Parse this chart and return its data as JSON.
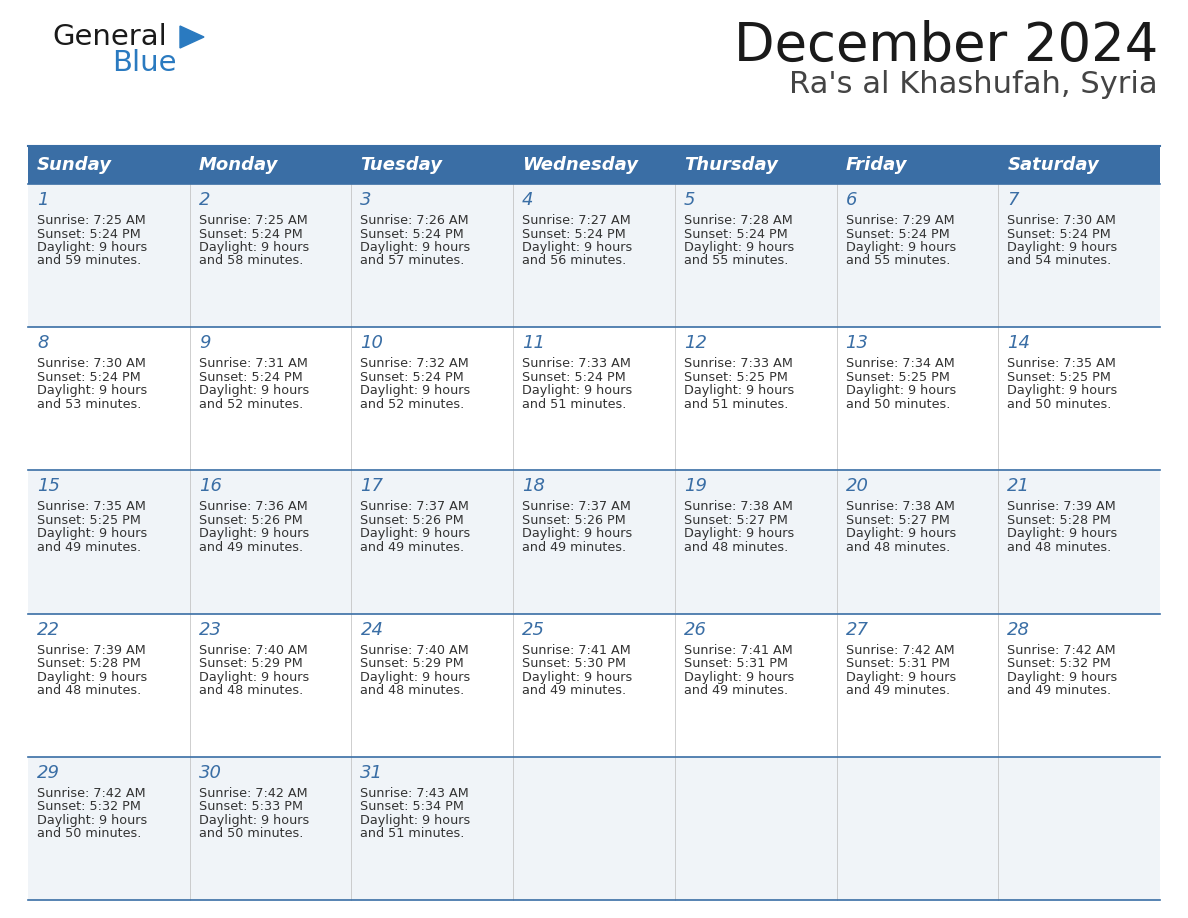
{
  "title": "December 2024",
  "subtitle": "Ra's al Khashufah, Syria",
  "days_of_week": [
    "Sunday",
    "Monday",
    "Tuesday",
    "Wednesday",
    "Thursday",
    "Friday",
    "Saturday"
  ],
  "header_bg": "#3a6ea5",
  "header_text_color": "#ffffff",
  "row_bg_even": "#f0f4f8",
  "row_bg_odd": "#ffffff",
  "separator_color": "#3a6ea5",
  "day_num_color": "#3a6ea5",
  "cell_text_color": "#333333",
  "title_color": "#1a1a1a",
  "subtitle_color": "#444444",
  "logo_general_color": "#1a1a1a",
  "logo_blue_color": "#2a7ac0",
  "logo_triangle_color": "#2a7ac0",
  "calendar_data": [
    [
      {
        "day": 1,
        "sunrise": "7:25 AM",
        "sunset": "5:24 PM",
        "daylight": "9 hours and 59 minutes"
      },
      {
        "day": 2,
        "sunrise": "7:25 AM",
        "sunset": "5:24 PM",
        "daylight": "9 hours and 58 minutes"
      },
      {
        "day": 3,
        "sunrise": "7:26 AM",
        "sunset": "5:24 PM",
        "daylight": "9 hours and 57 minutes"
      },
      {
        "day": 4,
        "sunrise": "7:27 AM",
        "sunset": "5:24 PM",
        "daylight": "9 hours and 56 minutes"
      },
      {
        "day": 5,
        "sunrise": "7:28 AM",
        "sunset": "5:24 PM",
        "daylight": "9 hours and 55 minutes"
      },
      {
        "day": 6,
        "sunrise": "7:29 AM",
        "sunset": "5:24 PM",
        "daylight": "9 hours and 55 minutes"
      },
      {
        "day": 7,
        "sunrise": "7:30 AM",
        "sunset": "5:24 PM",
        "daylight": "9 hours and 54 minutes"
      }
    ],
    [
      {
        "day": 8,
        "sunrise": "7:30 AM",
        "sunset": "5:24 PM",
        "daylight": "9 hours and 53 minutes"
      },
      {
        "day": 9,
        "sunrise": "7:31 AM",
        "sunset": "5:24 PM",
        "daylight": "9 hours and 52 minutes"
      },
      {
        "day": 10,
        "sunrise": "7:32 AM",
        "sunset": "5:24 PM",
        "daylight": "9 hours and 52 minutes"
      },
      {
        "day": 11,
        "sunrise": "7:33 AM",
        "sunset": "5:24 PM",
        "daylight": "9 hours and 51 minutes"
      },
      {
        "day": 12,
        "sunrise": "7:33 AM",
        "sunset": "5:25 PM",
        "daylight": "9 hours and 51 minutes"
      },
      {
        "day": 13,
        "sunrise": "7:34 AM",
        "sunset": "5:25 PM",
        "daylight": "9 hours and 50 minutes"
      },
      {
        "day": 14,
        "sunrise": "7:35 AM",
        "sunset": "5:25 PM",
        "daylight": "9 hours and 50 minutes"
      }
    ],
    [
      {
        "day": 15,
        "sunrise": "7:35 AM",
        "sunset": "5:25 PM",
        "daylight": "9 hours and 49 minutes"
      },
      {
        "day": 16,
        "sunrise": "7:36 AM",
        "sunset": "5:26 PM",
        "daylight": "9 hours and 49 minutes"
      },
      {
        "day": 17,
        "sunrise": "7:37 AM",
        "sunset": "5:26 PM",
        "daylight": "9 hours and 49 minutes"
      },
      {
        "day": 18,
        "sunrise": "7:37 AM",
        "sunset": "5:26 PM",
        "daylight": "9 hours and 49 minutes"
      },
      {
        "day": 19,
        "sunrise": "7:38 AM",
        "sunset": "5:27 PM",
        "daylight": "9 hours and 48 minutes"
      },
      {
        "day": 20,
        "sunrise": "7:38 AM",
        "sunset": "5:27 PM",
        "daylight": "9 hours and 48 minutes"
      },
      {
        "day": 21,
        "sunrise": "7:39 AM",
        "sunset": "5:28 PM",
        "daylight": "9 hours and 48 minutes"
      }
    ],
    [
      {
        "day": 22,
        "sunrise": "7:39 AM",
        "sunset": "5:28 PM",
        "daylight": "9 hours and 48 minutes"
      },
      {
        "day": 23,
        "sunrise": "7:40 AM",
        "sunset": "5:29 PM",
        "daylight": "9 hours and 48 minutes"
      },
      {
        "day": 24,
        "sunrise": "7:40 AM",
        "sunset": "5:29 PM",
        "daylight": "9 hours and 48 minutes"
      },
      {
        "day": 25,
        "sunrise": "7:41 AM",
        "sunset": "5:30 PM",
        "daylight": "9 hours and 49 minutes"
      },
      {
        "day": 26,
        "sunrise": "7:41 AM",
        "sunset": "5:31 PM",
        "daylight": "9 hours and 49 minutes"
      },
      {
        "day": 27,
        "sunrise": "7:42 AM",
        "sunset": "5:31 PM",
        "daylight": "9 hours and 49 minutes"
      },
      {
        "day": 28,
        "sunrise": "7:42 AM",
        "sunset": "5:32 PM",
        "daylight": "9 hours and 49 minutes"
      }
    ],
    [
      {
        "day": 29,
        "sunrise": "7:42 AM",
        "sunset": "5:32 PM",
        "daylight": "9 hours and 50 minutes"
      },
      {
        "day": 30,
        "sunrise": "7:42 AM",
        "sunset": "5:33 PM",
        "daylight": "9 hours and 50 minutes"
      },
      {
        "day": 31,
        "sunrise": "7:43 AM",
        "sunset": "5:34 PM",
        "daylight": "9 hours and 51 minutes"
      },
      null,
      null,
      null,
      null
    ]
  ]
}
